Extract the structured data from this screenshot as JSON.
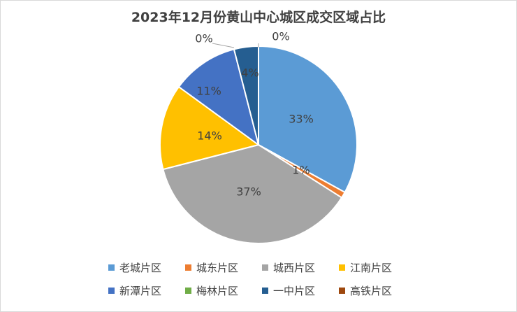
{
  "chart_data": {
    "type": "pie",
    "title": "2023年12月份黄山中心城区成交区域占比",
    "categories": [
      "老城片区",
      "城东片区",
      "城西片区",
      "江南片区",
      "新潭片区",
      "梅林片区",
      "一中片区",
      "高铁片区"
    ],
    "values": [
      33,
      1,
      37,
      14,
      11,
      0,
      4,
      0
    ],
    "labels": [
      "33%",
      "1%",
      "37%",
      "14%",
      "11%",
      "0%",
      "4%",
      "0%"
    ],
    "colors": [
      "#5b9bd5",
      "#ed7d31",
      "#a5a5a5",
      "#ffc000",
      "#4472c4",
      "#70ad47",
      "#255e91",
      "#9e480e"
    ],
    "legend_position": "bottom"
  }
}
